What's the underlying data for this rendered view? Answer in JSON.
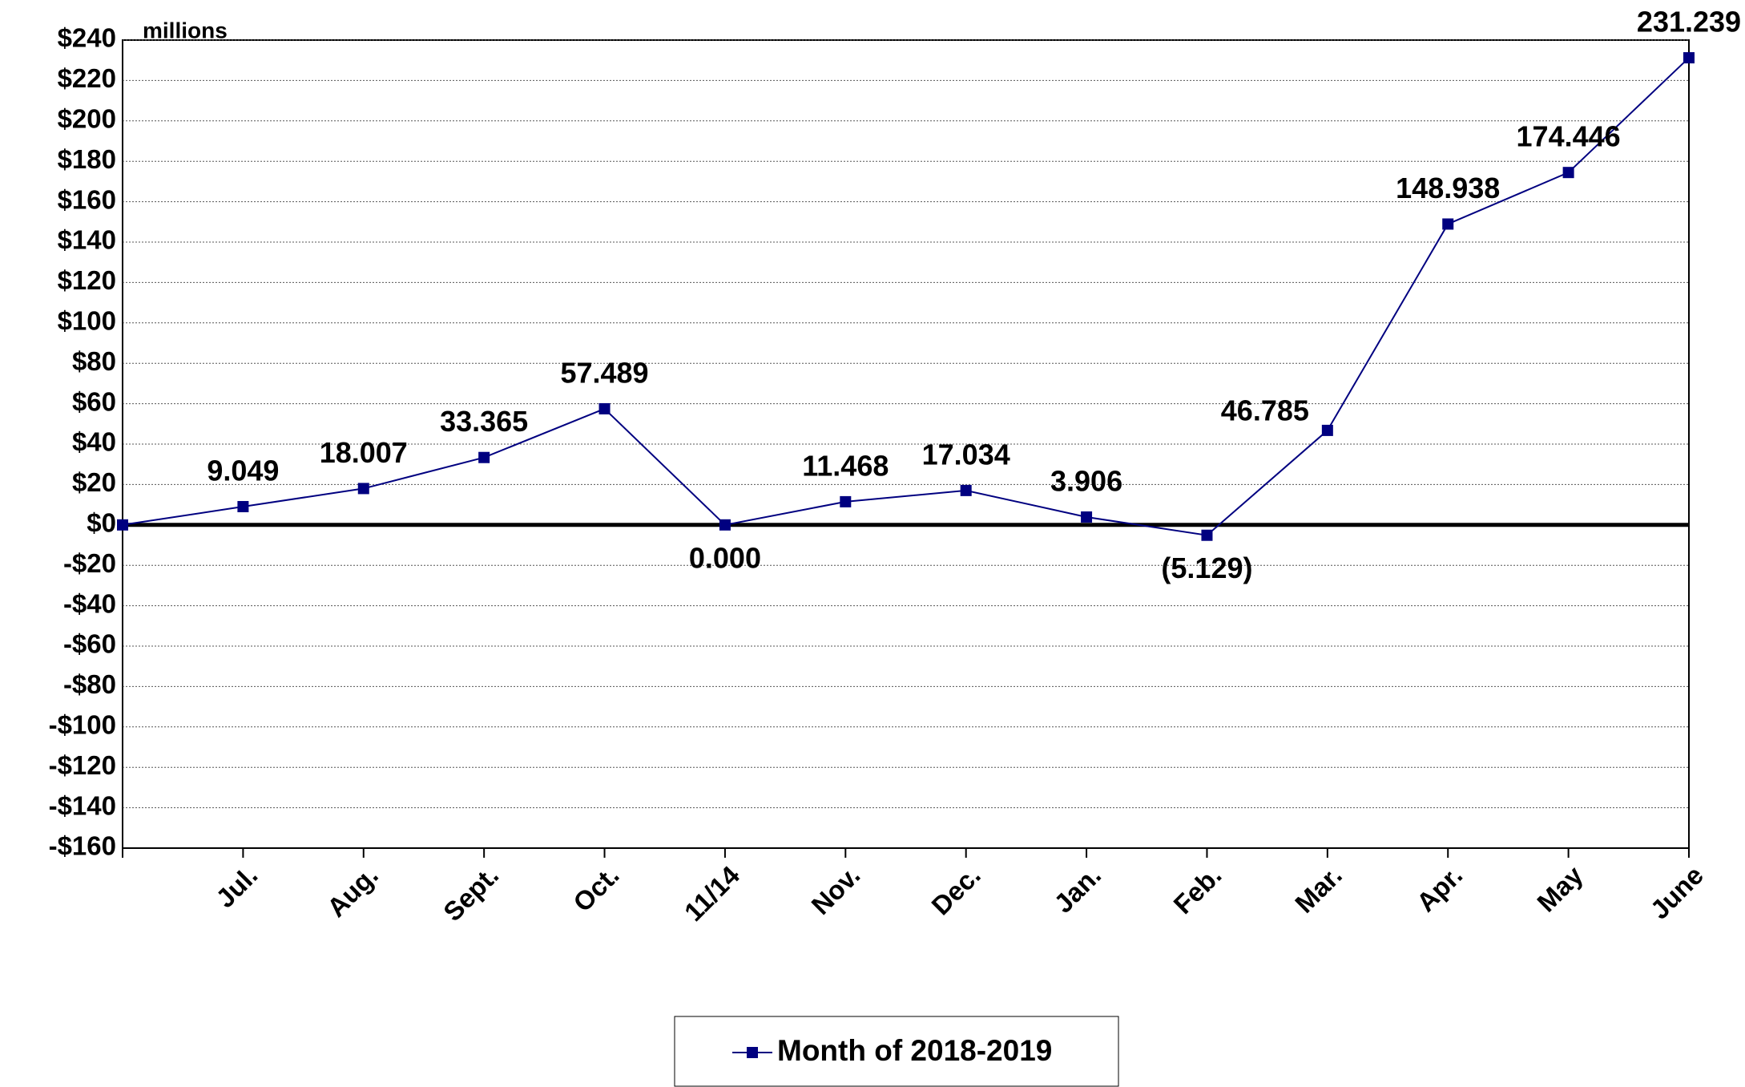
{
  "chart_data": {
    "type": "line",
    "annotation": "millions",
    "categories": [
      null,
      "Jul.",
      "Aug.",
      "Sept.",
      "Oct.",
      "11/14",
      "Nov.",
      "Dec.",
      "Jan.",
      "Feb.",
      "Mar.",
      "Apr.",
      "May",
      "June"
    ],
    "series": [
      {
        "name": "Month of 2018-2019",
        "color": "#000080",
        "values": [
          0,
          9.049,
          18.007,
          33.365,
          57.489,
          0,
          11.468,
          17.034,
          3.906,
          -5.129,
          46.785,
          148.938,
          174.446,
          231.239
        ],
        "value_labels": [
          null,
          "9.049",
          "18.007",
          "33.365",
          "57.489",
          "0.000",
          "11.468",
          "17.034",
          "3.906",
          "(5.129)",
          "46.785",
          "148.938",
          "174.446",
          "231.239"
        ]
      }
    ],
    "ylim": [
      -160,
      240
    ],
    "yticks": [
      {
        "value": -160,
        "label": "-$160"
      },
      {
        "value": -140,
        "label": "-$140"
      },
      {
        "value": -120,
        "label": "-$120"
      },
      {
        "value": -100,
        "label": "-$100"
      },
      {
        "value": -80,
        "label": "-$80"
      },
      {
        "value": -60,
        "label": "-$60"
      },
      {
        "value": -40,
        "label": "-$40"
      },
      {
        "value": -20,
        "label": "-$20"
      },
      {
        "value": 0,
        "label": "$0"
      },
      {
        "value": 20,
        "label": "$20"
      },
      {
        "value": 40,
        "label": "$40"
      },
      {
        "value": 60,
        "label": "$60"
      },
      {
        "value": 80,
        "label": "$80"
      },
      {
        "value": 100,
        "label": "$100"
      },
      {
        "value": 120,
        "label": "$120"
      },
      {
        "value": 140,
        "label": "$140"
      },
      {
        "value": 160,
        "label": "$160"
      },
      {
        "value": 180,
        "label": "$180"
      },
      {
        "value": 200,
        "label": "$200"
      },
      {
        "value": 220,
        "label": "$220"
      },
      {
        "value": 240,
        "label": "$240"
      }
    ],
    "grid": true,
    "legend": "bottom"
  }
}
